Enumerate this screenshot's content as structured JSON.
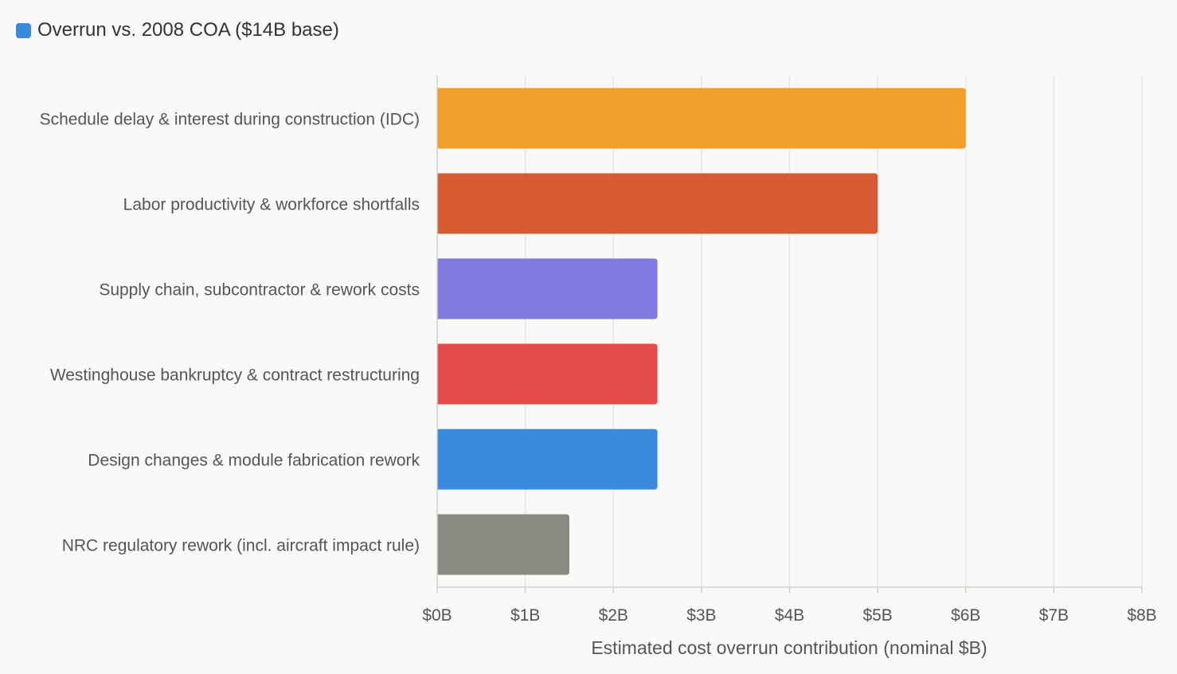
{
  "legend": {
    "label": "Overrun vs. 2008 COA ($14B base)",
    "color": "#3a8ade"
  },
  "chart_data": {
    "type": "bar",
    "orientation": "horizontal",
    "categories": [
      "Schedule delay & interest during construction (IDC)",
      "Labor productivity & workforce shortfalls",
      "Supply chain, subcontractor & rework costs",
      "Westinghouse bankruptcy & contract restructuring",
      "Design changes & module fabrication rework",
      "NRC regulatory rework (incl. aircraft impact rule)"
    ],
    "series": [
      {
        "name": "Overrun vs. 2008 COA ($14B base)",
        "values": [
          6,
          5,
          2.5,
          2.5,
          2.5,
          1.5
        ]
      }
    ],
    "bar_colors": [
      "#ef9f2a",
      "#d95b31",
      "#8079e0",
      "#e34b4b",
      "#3a8ade",
      "#8a8a82"
    ],
    "xlabel": "Estimated cost overrun contribution (nominal $B)",
    "ylabel": "",
    "xlim": [
      0,
      8
    ],
    "xticks": [
      0,
      1,
      2,
      3,
      4,
      5,
      6,
      7,
      8
    ],
    "xtick_labels": [
      "$0B",
      "$1B",
      "$2B",
      "$3B",
      "$4B",
      "$5B",
      "$6B",
      "$7B",
      "$8B"
    ],
    "grid": true,
    "legend_position": "top-left"
  }
}
